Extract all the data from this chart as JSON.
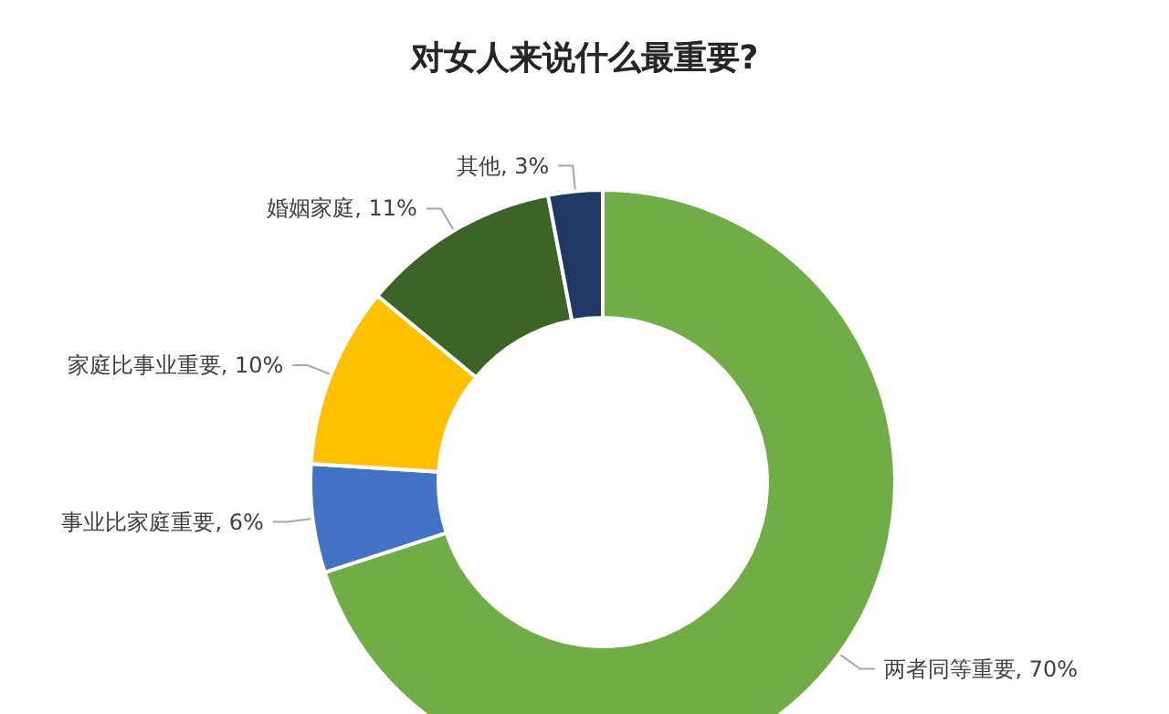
{
  "chart_data": {
    "type": "donut",
    "title": "对女人来说什么最重要?",
    "categories": [
      "两者同等重要",
      "事业比家庭重要",
      "家庭比事业重要",
      "婚姻家庭",
      "其他"
    ],
    "values": [
      70,
      6,
      10,
      11,
      3
    ],
    "value_labels": [
      "70%",
      "6%",
      "10%",
      "11%",
      "3%"
    ],
    "colors": [
      "#70ad47",
      "#4472c4",
      "#ffc000",
      "#3c6427",
      "#203864"
    ],
    "legend": false
  }
}
